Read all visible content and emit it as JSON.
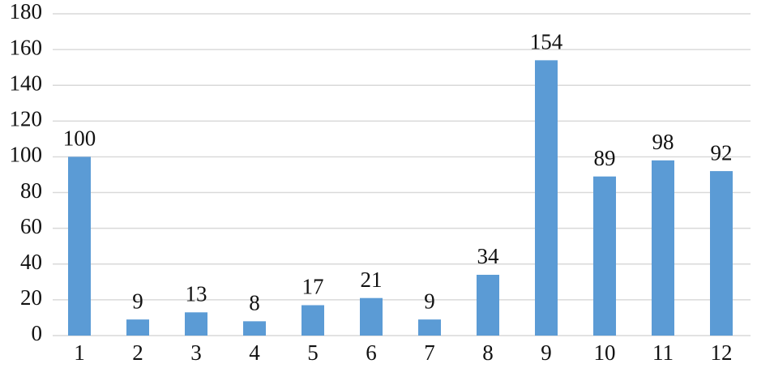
{
  "chart_data": {
    "type": "bar",
    "categories": [
      "1",
      "2",
      "3",
      "4",
      "5",
      "6",
      "7",
      "8",
      "9",
      "10",
      "11",
      "12"
    ],
    "values": [
      100,
      9,
      13,
      8,
      17,
      21,
      9,
      34,
      154,
      89,
      98,
      92
    ],
    "color": "#5b9bd5",
    "ylim": [
      0,
      180
    ],
    "yticks": [
      0,
      20,
      40,
      60,
      80,
      100,
      120,
      140,
      160,
      180
    ],
    "grid": true
  }
}
